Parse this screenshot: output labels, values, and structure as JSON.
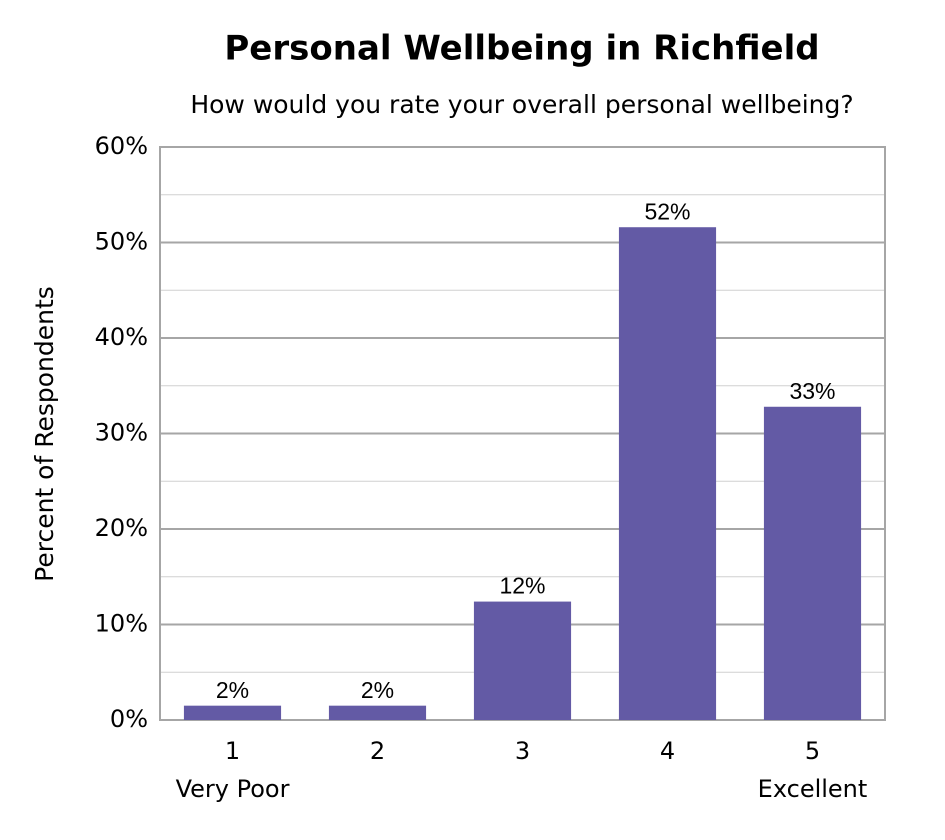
{
  "chart_data": {
    "type": "bar",
    "title": "Personal Wellbeing in Richfield",
    "subtitle": "How would you rate your overall personal wellbeing?",
    "y_label": "Percent of Respondents",
    "categories": [
      "1",
      "2",
      "3",
      "4",
      "5"
    ],
    "category_subtitles": [
      "Very Poor",
      null,
      null,
      null,
      "Excellent"
    ],
    "values": [
      1.5,
      1.5,
      12.4,
      51.6,
      32.8
    ],
    "value_labels": [
      "2%",
      "2%",
      "12%",
      "52%",
      "33%"
    ],
    "color": "#635aa5",
    "ylim": [
      0,
      60
    ],
    "yticks": [
      {
        "value": 0,
        "label": "0%"
      },
      {
        "value": 10,
        "label": "10%"
      },
      {
        "value": 20,
        "label": "20%"
      },
      {
        "value": 30,
        "label": "30%"
      },
      {
        "value": 40,
        "label": "40%"
      },
      {
        "value": 50,
        "label": "50%"
      },
      {
        "value": 60,
        "label": "60%"
      }
    ],
    "minor_yticks": [
      5,
      15,
      25,
      35,
      45,
      55
    ],
    "grid": true
  }
}
